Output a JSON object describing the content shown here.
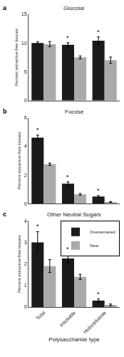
{
  "chart_data": [
    {
      "type": "bar",
      "title": "Glucose",
      "annotations": [
        {
          "text": "a"
        },
        {
          "text": "*",
          "category": "Insoluble",
          "series": "Overwintered"
        },
        {
          "text": "*",
          "category": "Holocellulose",
          "series": "Overwintered"
        }
      ],
      "categories": [
        "Total",
        "Insoluble",
        "Holocellulose"
      ],
      "series": [
        {
          "name": "Overwintered",
          "color": "#1a1a1a",
          "values": [
            10.0,
            9.7,
            10.4
          ],
          "errors": [
            0.2,
            0.35,
            0.65
          ]
        },
        {
          "name": "New",
          "color": "#aaaaaa",
          "values": [
            9.8,
            7.5,
            7.0
          ],
          "errors": [
            0.45,
            0.25,
            0.55
          ]
        }
      ],
      "ylabel": "Percent extractive-free tissues",
      "ylim": [
        0,
        15
      ],
      "yticks": [
        0,
        5,
        10,
        15
      ],
      "grid": false,
      "tick_labels": "y"
    },
    {
      "type": "bar",
      "title": "Fucose",
      "annotations": [
        {
          "text": "b"
        },
        {
          "text": "*",
          "category": "Total",
          "series": "Overwintered"
        },
        {
          "text": "*",
          "category": "Insoluble",
          "series": "Overwintered"
        },
        {
          "text": "*",
          "category": "Holocellulose",
          "series": "Overwintered"
        }
      ],
      "categories": [
        "Total",
        "Insoluble",
        "Holocellulose"
      ],
      "series": [
        {
          "name": "Overwintered",
          "color": "#1a1a1a",
          "values": [
            4.6,
            1.4,
            0.5
          ],
          "errors": [
            0.18,
            0.12,
            0.07
          ]
        },
        {
          "name": "New",
          "color": "#aaaaaa",
          "values": [
            2.75,
            0.65,
            0.12
          ],
          "errors": [
            0.08,
            0.06,
            0.03
          ]
        }
      ],
      "ylabel": "Percent extractive-free tissues",
      "ylim": [
        0,
        6
      ],
      "yticks": [
        0,
        2,
        4,
        6
      ],
      "grid": false,
      "tick_labels": "y"
    },
    {
      "type": "bar",
      "title": "Other Neutral Sugars",
      "annotations": [
        {
          "text": "c"
        },
        {
          "text": "*",
          "category": "Total",
          "series": "Overwintered"
        },
        {
          "text": "*",
          "category": "Insoluble",
          "series": "Overwintered"
        },
        {
          "text": "*",
          "category": "Holocellulose",
          "series": "Overwintered"
        }
      ],
      "categories": [
        "Total",
        "Insoluble",
        "Holocellulose"
      ],
      "series": [
        {
          "name": "Overwintered",
          "color": "#1a1a1a",
          "values": [
            3.0,
            2.25,
            0.3
          ],
          "errors": [
            0.5,
            0.2,
            0.07
          ]
        },
        {
          "name": "New",
          "color": "#aaaaaa",
          "values": [
            1.9,
            1.4,
            0.1
          ],
          "errors": [
            0.3,
            0.12,
            0.04
          ]
        }
      ],
      "xlabel": "Polysaccharide type",
      "ylabel": "Percent extractive-free tissues",
      "ylim": [
        0,
        4
      ],
      "yticks": [
        0,
        1,
        2,
        3,
        4
      ],
      "grid": false,
      "legend": "upper right"
    }
  ]
}
